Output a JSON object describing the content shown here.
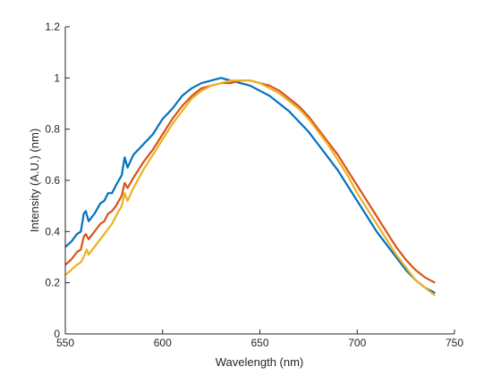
{
  "chart_data": {
    "type": "line",
    "title": "",
    "xlabel": "Wavelength (nm)",
    "ylabel": "Intensity (A.U.) (nm)",
    "xlim": [
      550,
      750
    ],
    "ylim": [
      0,
      1.2
    ],
    "xticks": [
      550,
      600,
      650,
      700,
      750
    ],
    "yticks": [
      0,
      0.2,
      0.4,
      0.6,
      0.8,
      1,
      1.2
    ],
    "xtick_labels": [
      "550",
      "600",
      "650",
      "700",
      "750"
    ],
    "ytick_labels": [
      "0",
      "0.2",
      "0.4",
      "0.6",
      "0.8",
      "1",
      "1.2"
    ],
    "grid": false,
    "legend": "none",
    "series": [
      {
        "color": "#0072BD",
        "x": [
          550,
          553,
          556,
          558,
          559.5,
          560.5,
          562,
          565,
          568,
          570,
          572,
          574,
          576,
          579,
          580.5,
          582,
          585,
          590,
          595,
          600,
          605,
          610,
          615,
          620,
          625,
          630,
          635,
          640,
          645,
          650,
          655,
          660,
          665,
          670,
          675,
          680,
          685,
          690,
          695,
          700,
          705,
          710,
          715,
          720,
          725,
          730,
          735,
          740
        ],
        "y": [
          0.34,
          0.36,
          0.39,
          0.4,
          0.47,
          0.48,
          0.44,
          0.47,
          0.51,
          0.52,
          0.55,
          0.55,
          0.58,
          0.62,
          0.69,
          0.65,
          0.7,
          0.74,
          0.78,
          0.84,
          0.88,
          0.93,
          0.96,
          0.98,
          0.99,
          1.0,
          0.99,
          0.98,
          0.97,
          0.95,
          0.93,
          0.9,
          0.87,
          0.83,
          0.79,
          0.74,
          0.69,
          0.64,
          0.58,
          0.52,
          0.46,
          0.4,
          0.35,
          0.3,
          0.25,
          0.21,
          0.18,
          0.16
        ]
      },
      {
        "color": "#D95319",
        "x": [
          550,
          553,
          556,
          558,
          559.5,
          560.5,
          562,
          565,
          568,
          570,
          572,
          574,
          576,
          579,
          580.5,
          582,
          585,
          590,
          595,
          600,
          605,
          610,
          615,
          620,
          625,
          630,
          635,
          640,
          645,
          650,
          655,
          660,
          665,
          670,
          675,
          680,
          685,
          690,
          695,
          700,
          705,
          710,
          715,
          720,
          725,
          730,
          735,
          740
        ],
        "y": [
          0.27,
          0.29,
          0.32,
          0.33,
          0.38,
          0.39,
          0.37,
          0.4,
          0.43,
          0.44,
          0.47,
          0.48,
          0.5,
          0.54,
          0.59,
          0.57,
          0.61,
          0.67,
          0.72,
          0.78,
          0.84,
          0.89,
          0.93,
          0.96,
          0.97,
          0.98,
          0.98,
          0.99,
          0.99,
          0.98,
          0.97,
          0.95,
          0.92,
          0.89,
          0.85,
          0.8,
          0.75,
          0.7,
          0.64,
          0.58,
          0.52,
          0.46,
          0.4,
          0.34,
          0.29,
          0.25,
          0.22,
          0.2
        ]
      },
      {
        "color": "#EDB120",
        "x": [
          550,
          553,
          556,
          558,
          560,
          561,
          562,
          565,
          568,
          570,
          572,
          574,
          576,
          579,
          580.5,
          582,
          585,
          590,
          595,
          600,
          605,
          610,
          615,
          620,
          625,
          630,
          635,
          640,
          645,
          650,
          655,
          660,
          665,
          670,
          675,
          680,
          685,
          690,
          695,
          700,
          705,
          710,
          715,
          720,
          725,
          730,
          735,
          740
        ],
        "y": [
          0.23,
          0.25,
          0.27,
          0.28,
          0.31,
          0.33,
          0.31,
          0.34,
          0.37,
          0.39,
          0.41,
          0.43,
          0.46,
          0.5,
          0.55,
          0.52,
          0.57,
          0.64,
          0.7,
          0.76,
          0.82,
          0.87,
          0.92,
          0.95,
          0.97,
          0.98,
          0.99,
          0.99,
          0.99,
          0.98,
          0.96,
          0.94,
          0.91,
          0.88,
          0.84,
          0.79,
          0.74,
          0.68,
          0.62,
          0.55,
          0.49,
          0.43,
          0.37,
          0.31,
          0.26,
          0.21,
          0.18,
          0.15
        ]
      }
    ]
  }
}
